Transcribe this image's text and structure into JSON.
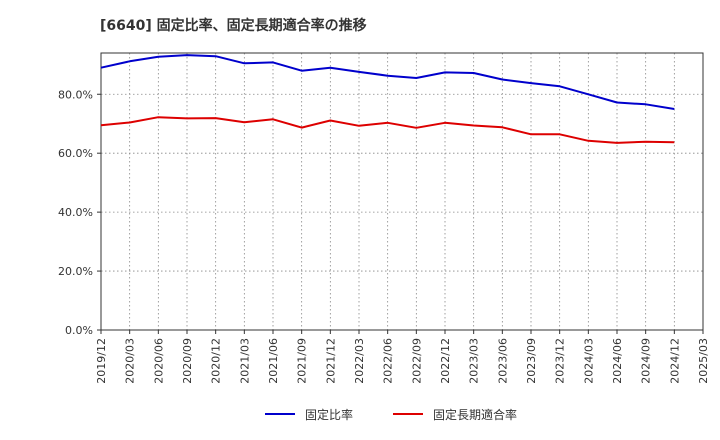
{
  "chart_data": {
    "type": "line",
    "title": "[6640]  固定比率、固定長期適合率の推移",
    "xlabel": "",
    "ylabel": "",
    "ylim": [
      0,
      94
    ],
    "yticks": [
      0,
      20,
      40,
      60,
      80
    ],
    "ytick_labels": [
      "0.0%",
      "20.0%",
      "40.0%",
      "60.0%",
      "80.0%"
    ],
    "categories": [
      "2019/12",
      "2020/03",
      "2020/06",
      "2020/09",
      "2020/12",
      "2021/03",
      "2021/06",
      "2021/09",
      "2021/12",
      "2022/03",
      "2022/06",
      "2022/09",
      "2022/12",
      "2023/03",
      "2023/06",
      "2023/09",
      "2023/12",
      "2024/03",
      "2024/06",
      "2024/09",
      "2024/12",
      "2025/03"
    ],
    "grid": true,
    "legend_position": "bottom",
    "series": [
      {
        "name": "固定比率",
        "color": "#0000cc",
        "values": [
          89.0,
          91.2,
          92.7,
          93.3,
          92.9,
          90.5,
          90.8,
          88.0,
          89.0,
          87.6,
          86.3,
          85.5,
          87.4,
          87.2,
          85.0,
          83.8,
          82.7,
          80.0,
          77.2,
          76.6,
          75.0,
          null
        ]
      },
      {
        "name": "固定長期適合率",
        "color": "#dd0000",
        "values": [
          69.5,
          70.4,
          72.2,
          71.8,
          71.9,
          70.5,
          71.5,
          68.7,
          71.1,
          69.3,
          70.3,
          68.6,
          70.3,
          69.4,
          68.8,
          66.4,
          66.4,
          64.2,
          63.5,
          63.9,
          63.7,
          null
        ]
      }
    ]
  }
}
